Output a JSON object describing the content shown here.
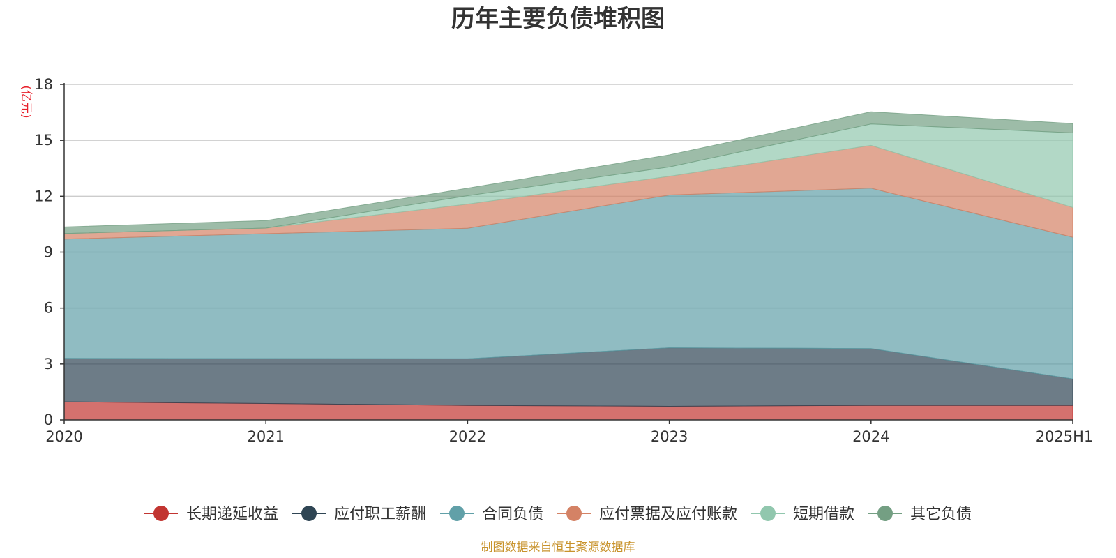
{
  "chart_data": {
    "type": "area",
    "stacked": true,
    "title": "历年主要负债堆积图",
    "unit_label": "(亿元)",
    "categories": [
      "2020",
      "2021",
      "2022",
      "2023",
      "2024",
      "2025H1"
    ],
    "ylim": [
      0,
      18
    ],
    "yticks": [
      "0",
      "3",
      "6",
      "9",
      "12",
      "15",
      "18"
    ],
    "grid": true,
    "legend_position": "bottom",
    "series": [
      {
        "name": "长期递延收益",
        "color": "#c23531",
        "values": [
          0.97,
          0.88,
          0.78,
          0.73,
          0.78,
          0.78
        ]
      },
      {
        "name": "应付职工薪酬",
        "color": "#2f4554",
        "values": [
          2.33,
          2.41,
          2.5,
          3.14,
          3.05,
          1.42
        ]
      },
      {
        "name": "合同负债",
        "color": "#61a0a8",
        "values": [
          6.4,
          6.7,
          7.0,
          8.2,
          8.6,
          7.6
        ]
      },
      {
        "name": "应付票据及应付账款",
        "color": "#d48265",
        "values": [
          0.3,
          0.3,
          1.3,
          1.0,
          2.3,
          1.6
        ]
      },
      {
        "name": "短期借款",
        "color": "#91c7ae",
        "values": [
          0.0,
          0.0,
          0.45,
          0.5,
          1.15,
          4.0
        ]
      },
      {
        "name": "其它负债",
        "color": "#749f83",
        "values": [
          0.35,
          0.4,
          0.4,
          0.65,
          0.65,
          0.5
        ]
      }
    ]
  },
  "footer": {
    "source": "制图数据来自恒生聚源数据库"
  }
}
